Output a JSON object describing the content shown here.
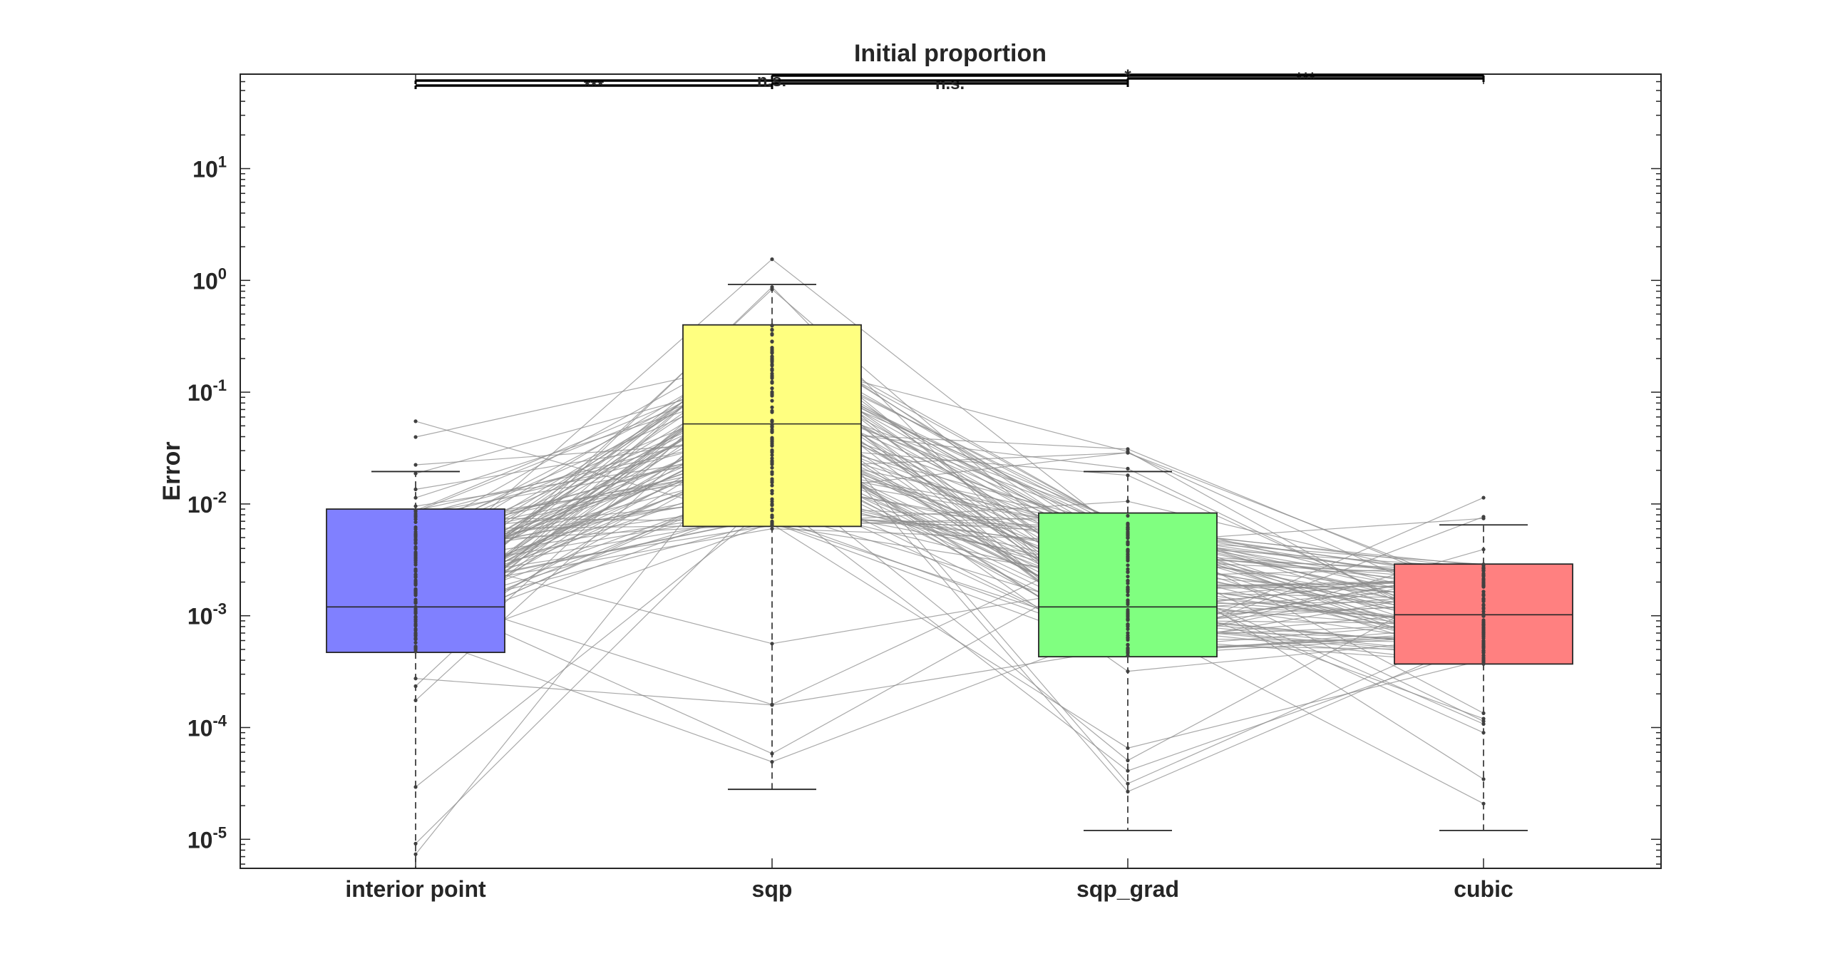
{
  "chart_data": {
    "type": "box",
    "title": "Initial proportion",
    "xlabel": "",
    "ylabel": "Error",
    "yscale": "log",
    "ylim": [
      5.5e-06,
      70
    ],
    "y_tick_labels": [
      {
        "base": "10",
        "exp": "-5",
        "value": 1e-05
      },
      {
        "base": "10",
        "exp": "-4",
        "value": 0.0001
      },
      {
        "base": "10",
        "exp": "-3",
        "value": 0.001
      },
      {
        "base": "10",
        "exp": "-2",
        "value": 0.01
      },
      {
        "base": "10",
        "exp": "-1",
        "value": 0.1
      },
      {
        "base": "10",
        "exp": "0",
        "value": 1
      },
      {
        "base": "10",
        "exp": "1",
        "value": 10
      }
    ],
    "categories": [
      "interior point",
      "sqp",
      "sqp_grad",
      "cubic"
    ],
    "boxes": [
      {
        "category": "interior point",
        "color": "#8080ff",
        "q1": 0.00047,
        "median": 0.0012,
        "q3": 0.009,
        "whisker_low": 5.5e-06,
        "whisker_high": 0.0195
      },
      {
        "category": "sqp",
        "color": "#ffff80",
        "q1": 0.0063,
        "median": 0.052,
        "q3": 0.4,
        "whisker_low": 2.8e-05,
        "whisker_high": 0.92
      },
      {
        "category": "sqp_grad",
        "color": "#80ff80",
        "q1": 0.00043,
        "median": 0.0012,
        "q3": 0.0083,
        "whisker_low": 1.2e-05,
        "whisker_high": 0.0195
      },
      {
        "category": "cubic",
        "color": "#ff8080",
        "q1": 0.00037,
        "median": 0.00102,
        "q3": 0.0029,
        "whisker_low": 1.2e-05,
        "whisker_high": 0.0065
      }
    ],
    "paired_lines": true,
    "significance": [
      {
        "from": "interior point",
        "to": "sqp",
        "label": "***"
      },
      {
        "from": "sqp",
        "to": "sqp_grad",
        "label": "n.s."
      },
      {
        "from": "interior point",
        "to": "sqp_grad",
        "label": "n.s."
      },
      {
        "from": "sqp_grad",
        "to": "cubic",
        "label": "***"
      },
      {
        "from": "sqp",
        "to": "cubic",
        "label": "*"
      }
    ],
    "grid": false,
    "legend": "none"
  }
}
